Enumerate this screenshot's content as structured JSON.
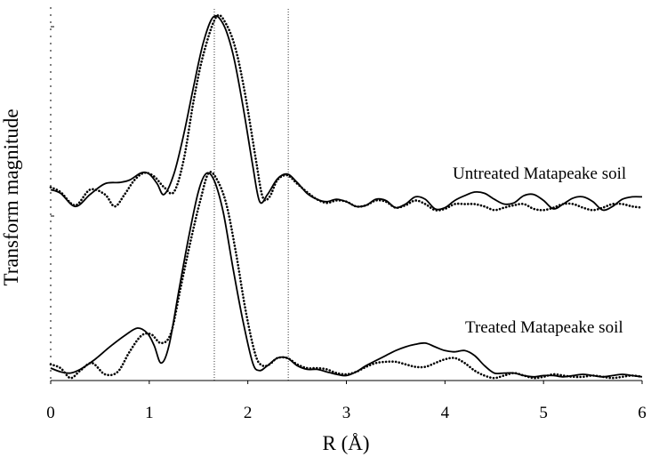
{
  "chart_data": {
    "type": "line",
    "title": "",
    "xlabel": "R (Å)",
    "ylabel": "Transform magnitude",
    "xlim": [
      0,
      6
    ],
    "x_ticks": [
      0,
      1,
      2,
      3,
      4,
      5,
      6
    ],
    "vertical_reference_lines": [
      1.66,
      2.41
    ],
    "grid": false,
    "legend": "none",
    "panels": [
      {
        "label": "Untreated Matapeake soil",
        "series": [
          {
            "style": "solid",
            "x": [
              0,
              0.1,
              0.25,
              0.4,
              0.55,
              0.7,
              0.8,
              0.92,
              1.0,
              1.08,
              1.15,
              1.25,
              1.35,
              1.45,
              1.55,
              1.65,
              1.75,
              1.85,
              1.95,
              2.05,
              2.12,
              2.2,
              2.3,
              2.4,
              2.5,
              2.6,
              2.7,
              2.8,
              2.9,
              3.0,
              3.1,
              3.2,
              3.3,
              3.4,
              3.5,
              3.6,
              3.7,
              3.8,
              3.9,
              4.0,
              4.1,
              4.2,
              4.3,
              4.4,
              4.5,
              4.6,
              4.7,
              4.8,
              4.9,
              5.0,
              5.1,
              5.2,
              5.3,
              5.4,
              5.5,
              5.6,
              5.7,
              5.8,
              5.9,
              6.0
            ],
            "y": [
              0.22,
              0.19,
              0.08,
              0.18,
              0.27,
              0.28,
              0.3,
              0.36,
              0.35,
              0.27,
              0.18,
              0.35,
              0.68,
              1.08,
              1.45,
              1.66,
              1.6,
              1.35,
              0.92,
              0.42,
              0.12,
              0.18,
              0.31,
              0.35,
              0.28,
              0.19,
              0.14,
              0.12,
              0.14,
              0.12,
              0.08,
              0.09,
              0.14,
              0.13,
              0.07,
              0.1,
              0.16,
              0.14,
              0.06,
              0.07,
              0.13,
              0.17,
              0.2,
              0.19,
              0.14,
              0.1,
              0.11,
              0.17,
              0.18,
              0.13,
              0.06,
              0.1,
              0.15,
              0.16,
              0.12,
              0.05,
              0.08,
              0.14,
              0.16,
              0.16
            ]
          },
          {
            "style": "dotted",
            "x": [
              0,
              0.1,
              0.25,
              0.4,
              0.55,
              0.65,
              0.75,
              0.85,
              0.95,
              1.05,
              1.15,
              1.25,
              1.35,
              1.45,
              1.55,
              1.68,
              1.78,
              1.88,
              1.98,
              2.08,
              2.15,
              2.22,
              2.3,
              2.4,
              2.5,
              2.6,
              2.7,
              2.8,
              2.9,
              3.0,
              3.1,
              3.2,
              3.3,
              3.4,
              3.5,
              3.6,
              3.7,
              3.8,
              3.9,
              4.0,
              4.1,
              4.2,
              4.3,
              4.4,
              4.5,
              4.6,
              4.7,
              4.8,
              4.9,
              5.0,
              5.1,
              5.2,
              5.3,
              5.4,
              5.5,
              5.6,
              5.7,
              5.8,
              5.9,
              6.0
            ],
            "y": [
              0.24,
              0.2,
              0.09,
              0.22,
              0.18,
              0.08,
              0.18,
              0.3,
              0.36,
              0.33,
              0.24,
              0.2,
              0.47,
              0.96,
              1.35,
              1.66,
              1.6,
              1.38,
              0.98,
              0.48,
              0.16,
              0.16,
              0.3,
              0.34,
              0.27,
              0.2,
              0.14,
              0.11,
              0.13,
              0.12,
              0.08,
              0.09,
              0.13,
              0.12,
              0.07,
              0.09,
              0.13,
              0.1,
              0.05,
              0.06,
              0.1,
              0.1,
              0.1,
              0.08,
              0.05,
              0.07,
              0.09,
              0.1,
              0.06,
              0.05,
              0.07,
              0.1,
              0.1,
              0.07,
              0.05,
              0.07,
              0.1,
              0.1,
              0.08,
              0.07
            ]
          }
        ]
      },
      {
        "label": "Treated Matapeake soil",
        "series": [
          {
            "style": "solid",
            "x": [
              0,
              0.1,
              0.2,
              0.3,
              0.45,
              0.6,
              0.75,
              0.88,
              0.98,
              1.05,
              1.12,
              1.2,
              1.3,
              1.4,
              1.5,
              1.58,
              1.66,
              1.75,
              1.85,
              1.95,
              2.05,
              2.12,
              2.2,
              2.3,
              2.4,
              2.5,
              2.6,
              2.7,
              2.8,
              2.9,
              3.0,
              3.1,
              3.2,
              3.3,
              3.4,
              3.5,
              3.6,
              3.7,
              3.8,
              3.9,
              4.0,
              4.1,
              4.2,
              4.3,
              4.4,
              4.5,
              4.6,
              4.7,
              4.8,
              4.9,
              5.0,
              5.1,
              5.2,
              5.3,
              5.4,
              5.5,
              5.6,
              5.7,
              5.8,
              5.9,
              6.0
            ],
            "y": [
              0.1,
              0.07,
              0.06,
              0.09,
              0.17,
              0.27,
              0.36,
              0.42,
              0.38,
              0.28,
              0.14,
              0.28,
              0.72,
              1.15,
              1.52,
              1.66,
              1.6,
              1.35,
              0.9,
              0.48,
              0.14,
              0.08,
              0.12,
              0.18,
              0.18,
              0.12,
              0.09,
              0.09,
              0.07,
              0.05,
              0.04,
              0.07,
              0.12,
              0.16,
              0.2,
              0.24,
              0.27,
              0.29,
              0.3,
              0.27,
              0.24,
              0.23,
              0.24,
              0.2,
              0.12,
              0.06,
              0.06,
              0.06,
              0.04,
              0.03,
              0.04,
              0.04,
              0.03,
              0.04,
              0.05,
              0.04,
              0.03,
              0.04,
              0.05,
              0.04,
              0.03
            ]
          },
          {
            "style": "dotted",
            "x": [
              0,
              0.1,
              0.2,
              0.3,
              0.42,
              0.55,
              0.68,
              0.8,
              0.92,
              1.02,
              1.12,
              1.22,
              1.32,
              1.42,
              1.52,
              1.6,
              1.68,
              1.78,
              1.88,
              1.98,
              2.08,
              2.15,
              2.22,
              2.3,
              2.4,
              2.5,
              2.6,
              2.7,
              2.8,
              2.9,
              3.0,
              3.1,
              3.2,
              3.3,
              3.4,
              3.5,
              3.6,
              3.7,
              3.8,
              3.9,
              4.0,
              4.1,
              4.2,
              4.3,
              4.4,
              4.5,
              4.6,
              4.7,
              4.8,
              4.9,
              5.0,
              5.1,
              5.2,
              5.3,
              5.4,
              5.5,
              5.6,
              5.7,
              5.8,
              5.9,
              6.0
            ],
            "y": [
              0.13,
              0.1,
              0.02,
              0.08,
              0.14,
              0.05,
              0.07,
              0.23,
              0.36,
              0.37,
              0.3,
              0.38,
              0.75,
              1.12,
              1.45,
              1.66,
              1.62,
              1.42,
              1.02,
              0.55,
              0.2,
              0.12,
              0.13,
              0.18,
              0.18,
              0.13,
              0.1,
              0.1,
              0.09,
              0.06,
              0.05,
              0.07,
              0.11,
              0.14,
              0.15,
              0.15,
              0.13,
              0.11,
              0.11,
              0.14,
              0.17,
              0.18,
              0.14,
              0.08,
              0.04,
              0.02,
              0.04,
              0.06,
              0.04,
              0.02,
              0.03,
              0.05,
              0.04,
              0.03,
              0.03,
              0.04,
              0.03,
              0.02,
              0.03,
              0.04,
              0.03
            ]
          }
        ]
      }
    ]
  }
}
